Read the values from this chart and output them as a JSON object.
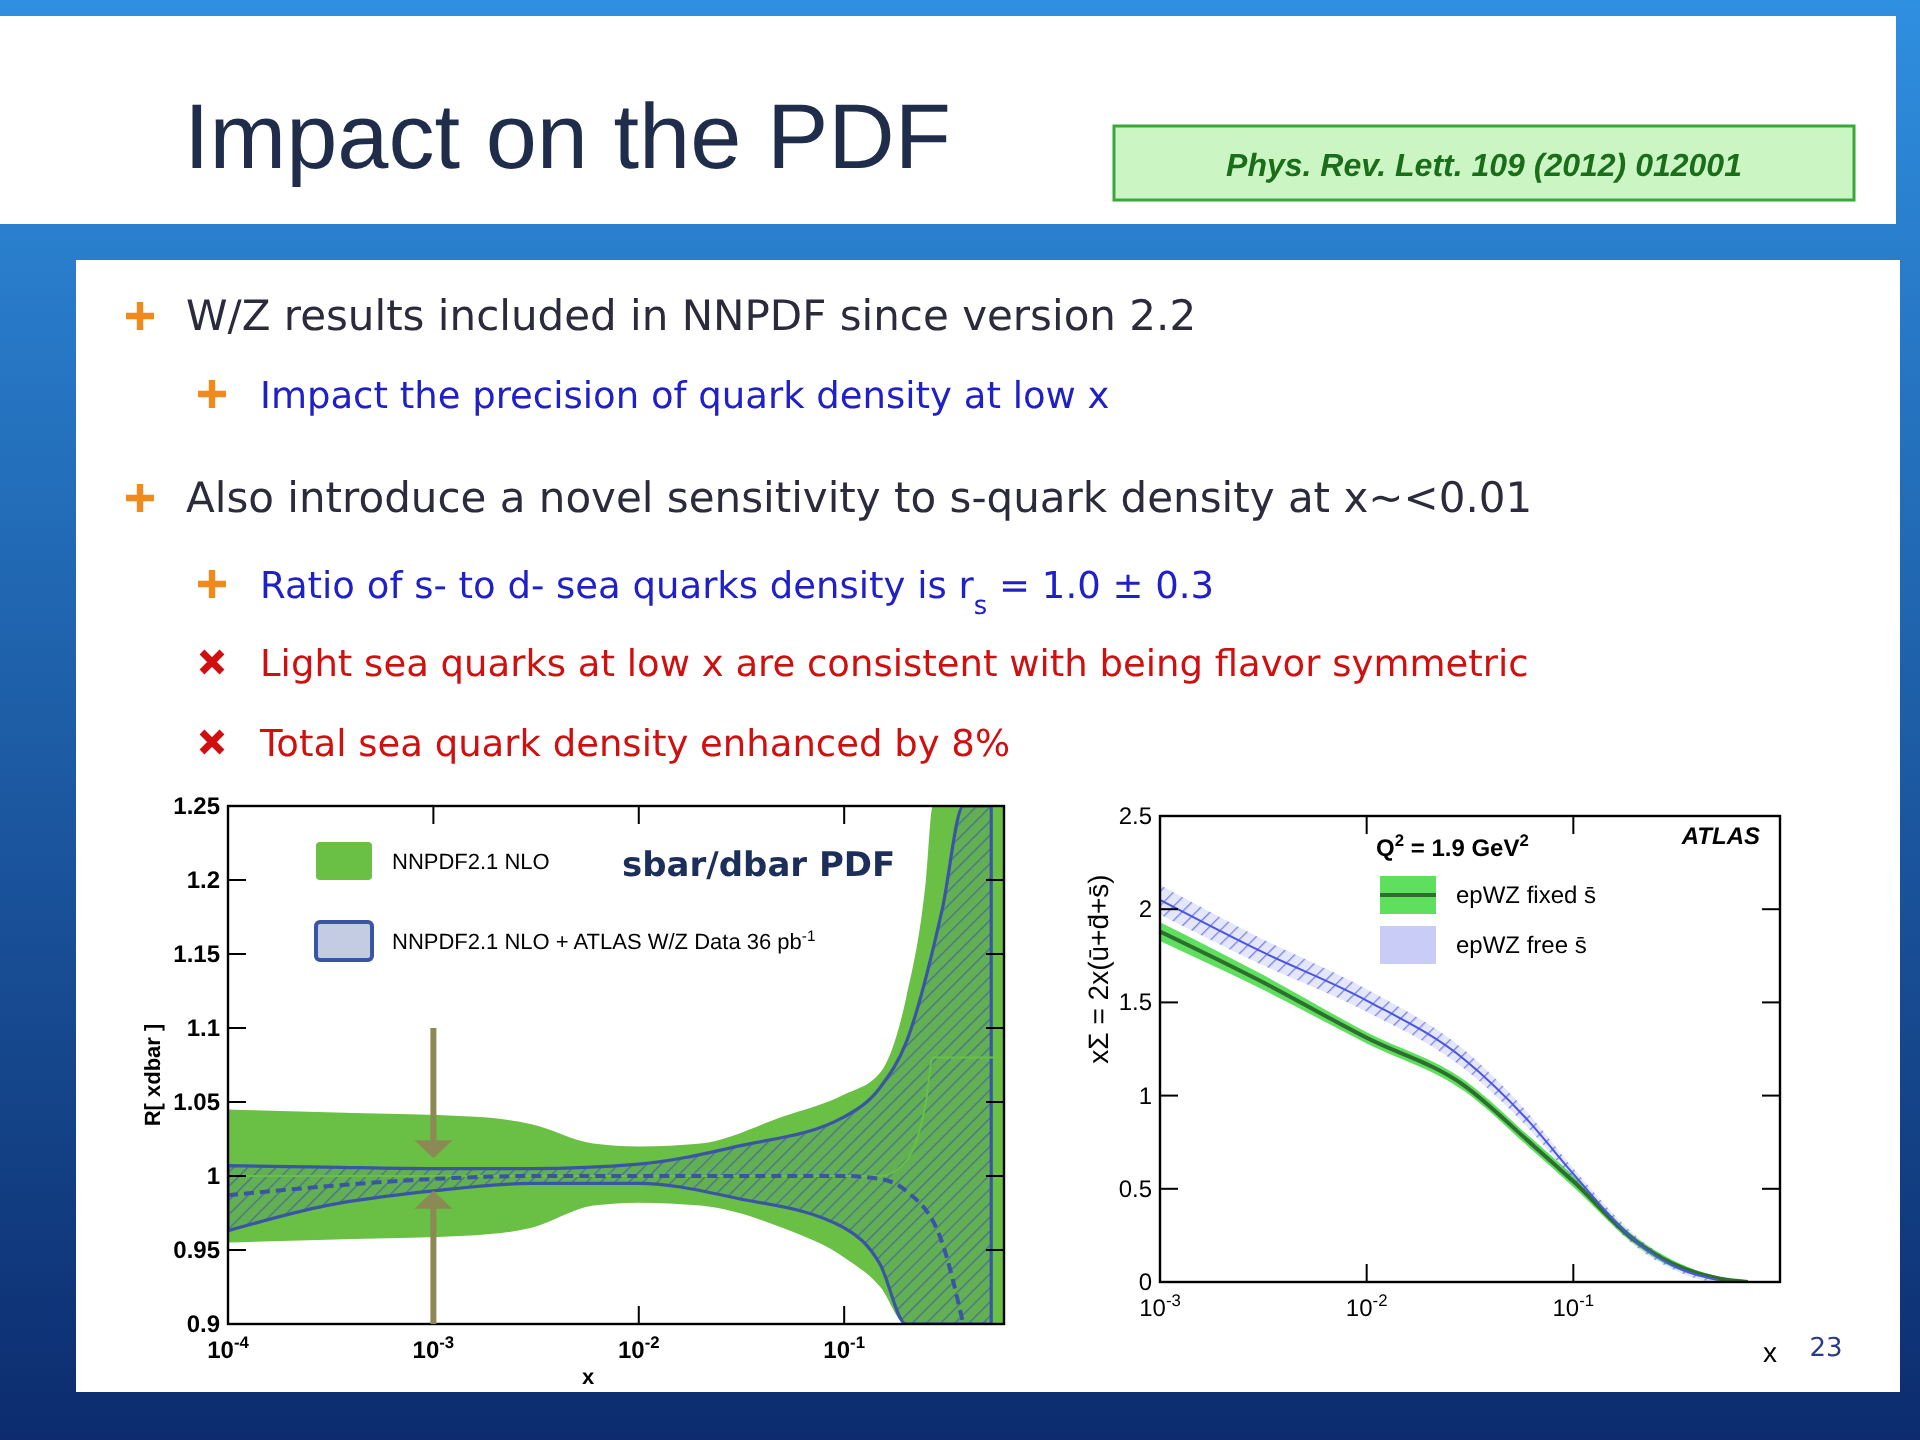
{
  "chart_data": [
    {
      "type": "other",
      "title": "Impact on the PDF",
      "annotations": [
        "Phys. Rev. Lett. 109 (2012) 012001",
        "W/Z results included in NNPDF since version 2.2",
        "Impact the precision of quark density at low x",
        "Also introduce a novel sensitivity to s-quark density at x~<0.01",
        "Ratio of s- to d- sea quarks density is r$_{s}$ = 1.0 ± 0.3",
        "Light sea quarks at low x are consistent with being flavor symmetric",
        "Total sea quark density enhanced by 8%",
        "23"
      ]
    },
    {
      "type": "line",
      "title": "sbar/dbar PDF",
      "xlabel": "x",
      "ylabel": "R[ xdbar ]",
      "log": "x",
      "xlim": [
        0.0001,
        0.6
      ],
      "ylim": [
        0.9,
        1.25
      ],
      "xticks": [
        {
          "value": 0.0001,
          "label": "10$^{-4}$"
        },
        {
          "value": 0.001,
          "label": "10$^{-3}$"
        },
        {
          "value": 0.01,
          "label": "10$^{-2}$"
        },
        {
          "value": 0.1,
          "label": "10$^{-1}$"
        }
      ],
      "yticks": [
        0.9,
        0.95,
        1,
        1.05,
        1.1,
        1.15,
        1.2,
        1.25
      ],
      "legend": "top left",
      "series": [
        {
          "name": "NNPDF2.1 NLO",
          "type": "line",
          "color": "#6abf45",
          "x": [
            0.0001,
            0.0003,
            0.0016,
            0.003,
            0.006,
            0.01,
            0.02,
            0.05,
            0.1,
            0.15,
            0.2,
            0.25,
            0.27,
            0.6
          ],
          "values": [
            1,
            1,
            1,
            1,
            1,
            1,
            1,
            1,
            1,
            1,
            1.01,
            1.05,
            1.08,
            1.08
          ],
          "upper": [
            1.045,
            1.043,
            1.04,
            1.035,
            1.022,
            1.02,
            1.022,
            1.04,
            1.055,
            1.07,
            1.12,
            1.2,
            1.25,
            1.25
          ],
          "lower": [
            0.955,
            0.957,
            0.96,
            0.965,
            0.98,
            0.982,
            0.98,
            0.965,
            0.945,
            0.925,
            0.9,
            0.9,
            0.9,
            0.9
          ]
        },
        {
          "name": "NNPDF2.1 NLO + ATLAS W/Z Data 36 pb$^{-1}$",
          "type": "line",
          "color": "#3b55a5",
          "line_style": "dashed",
          "x": [
            0.0001,
            0.0003,
            0.001,
            0.003,
            0.01,
            0.03,
            0.1,
            0.15,
            0.2,
            0.3,
            0.38,
            0.52
          ],
          "values": [
            0.987,
            0.993,
            0.998,
            1.0,
            1.0,
            1.0,
            1.0,
            0.998,
            0.99,
            0.955,
            0.9,
            null
          ],
          "upper": [
            1.007,
            1.006,
            1.005,
            1.005,
            1.008,
            1.02,
            1.04,
            1.06,
            1.09,
            1.18,
            1.25,
            1.25
          ],
          "lower": [
            0.963,
            0.98,
            0.99,
            0.995,
            0.995,
            0.985,
            0.965,
            0.94,
            0.9,
            0.9,
            0.9,
            0.9
          ]
        }
      ]
    },
    {
      "type": "line",
      "xlabel": "x",
      "ylabel": "xΣ = 2x(ū+d̄+s̄)",
      "log": "x",
      "xlim": [
        0.001,
        1
      ],
      "ylim": [
        0,
        2.5
      ],
      "xticks": [
        {
          "value": 0.001,
          "label": "10$^{-3}$"
        },
        {
          "value": 0.01,
          "label": "10$^{-2}$"
        },
        {
          "value": 0.1,
          "label": "10$^{-1}$"
        }
      ],
      "yticks": [
        0,
        0.5,
        1,
        1.5,
        2,
        2.5
      ],
      "legend": "top",
      "annotations": [
        "Q$^{2}$ = 1.9 GeV$^{2}$",
        "ATLAS"
      ],
      "x": [
        0.001,
        0.003,
        0.01,
        0.03,
        0.06,
        0.1,
        0.2,
        0.3,
        0.5,
        0.7
      ],
      "series": [
        {
          "name": "epWZ fixed s̄",
          "type": "line",
          "color": "#2e6e2e",
          "values": [
            1.88,
            1.62,
            1.31,
            1.05,
            0.76,
            0.54,
            0.22,
            0.1,
            0.02,
            0
          ],
          "upper": [
            1.93,
            1.66,
            1.34,
            1.08,
            0.79,
            0.57,
            0.24,
            0.12,
            0.03,
            0.01
          ],
          "lower": [
            1.83,
            1.58,
            1.28,
            1.02,
            0.73,
            0.51,
            0.2,
            0.08,
            0.01,
            0
          ]
        },
        {
          "name": "epWZ free s̄",
          "type": "line",
          "color": "#4a55e0",
          "values": [
            2.05,
            1.78,
            1.51,
            1.19,
            0.87,
            0.58,
            0.22,
            0.09,
            0.01,
            null
          ],
          "upper": [
            2.13,
            1.85,
            1.57,
            1.24,
            0.91,
            0.61,
            0.25,
            0.11,
            0.02,
            0.01
          ],
          "lower": [
            1.97,
            1.71,
            1.45,
            1.14,
            0.83,
            0.55,
            0.19,
            0.07,
            0,
            0
          ]
        }
      ]
    }
  ]
}
